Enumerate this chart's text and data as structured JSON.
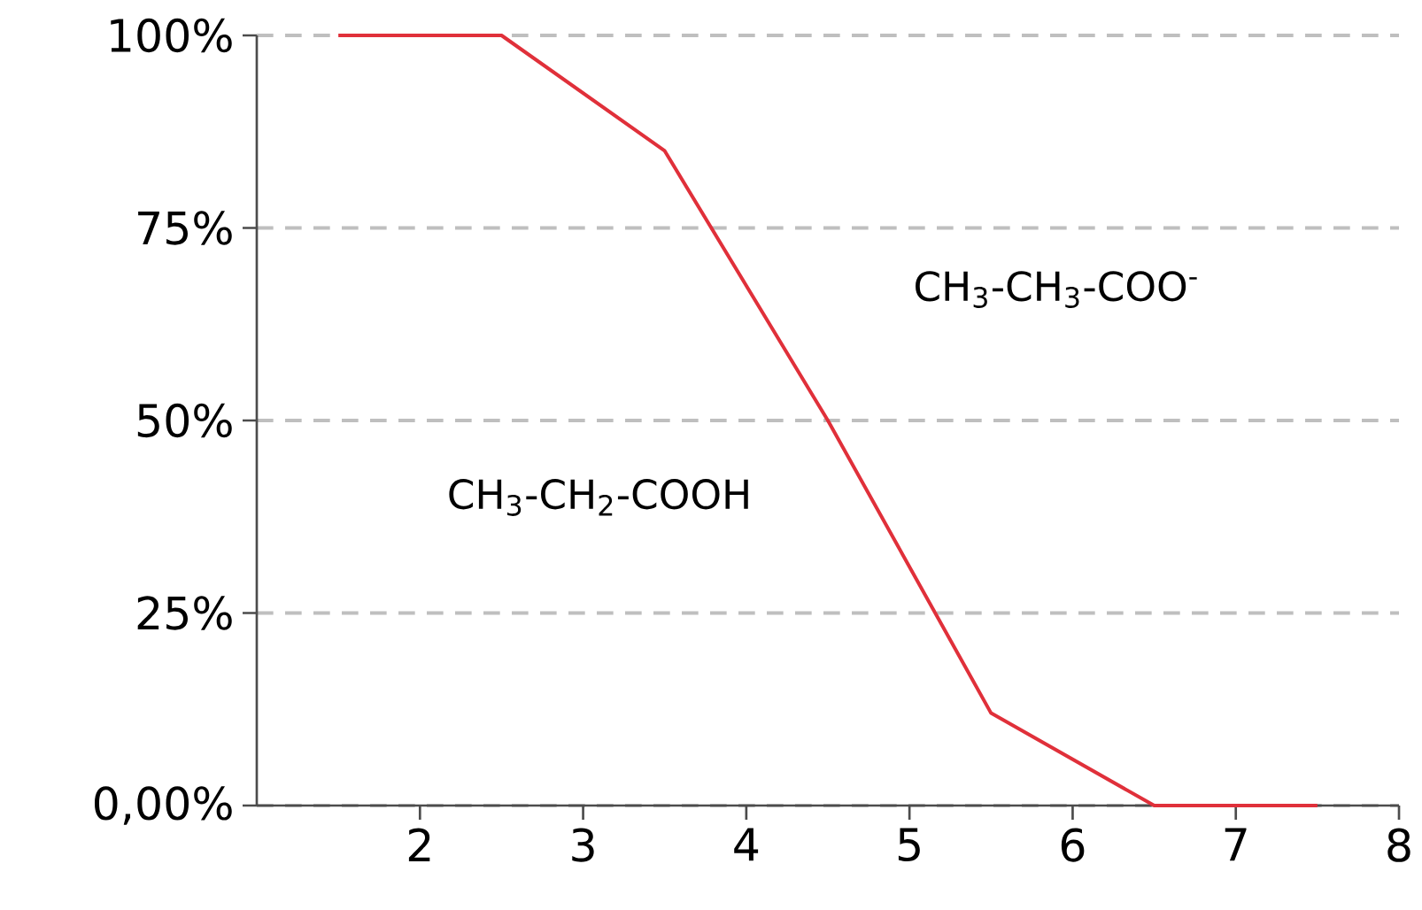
{
  "chart_data": {
    "type": "line",
    "x": [
      1.5,
      2.5,
      3.5,
      4.5,
      5.5,
      6.5,
      7.5
    ],
    "series": [
      {
        "color": "#e0303a",
        "values": [
          100,
          100,
          85,
          50,
          12,
          0,
          0
        ]
      }
    ],
    "xlim": [
      1,
      8
    ],
    "xticks": [
      2,
      3,
      4,
      5,
      6,
      7,
      8
    ],
    "ylim": [
      0,
      100
    ],
    "yticks": [
      {
        "value": 0,
        "label": "0,00%"
      },
      {
        "value": 25,
        "label": "25%"
      },
      {
        "value": 50,
        "label": "50%"
      },
      {
        "value": 75,
        "label": "75%"
      },
      {
        "value": 100,
        "label": "100%"
      }
    ],
    "grid": "y",
    "marker": "none",
    "line_style": "solid",
    "annotations": [
      "CH$_{3}$-CH$_{3}$-COO$^{-}$",
      "CH$_{3}$-CH$_{2}$-COOH"
    ]
  }
}
